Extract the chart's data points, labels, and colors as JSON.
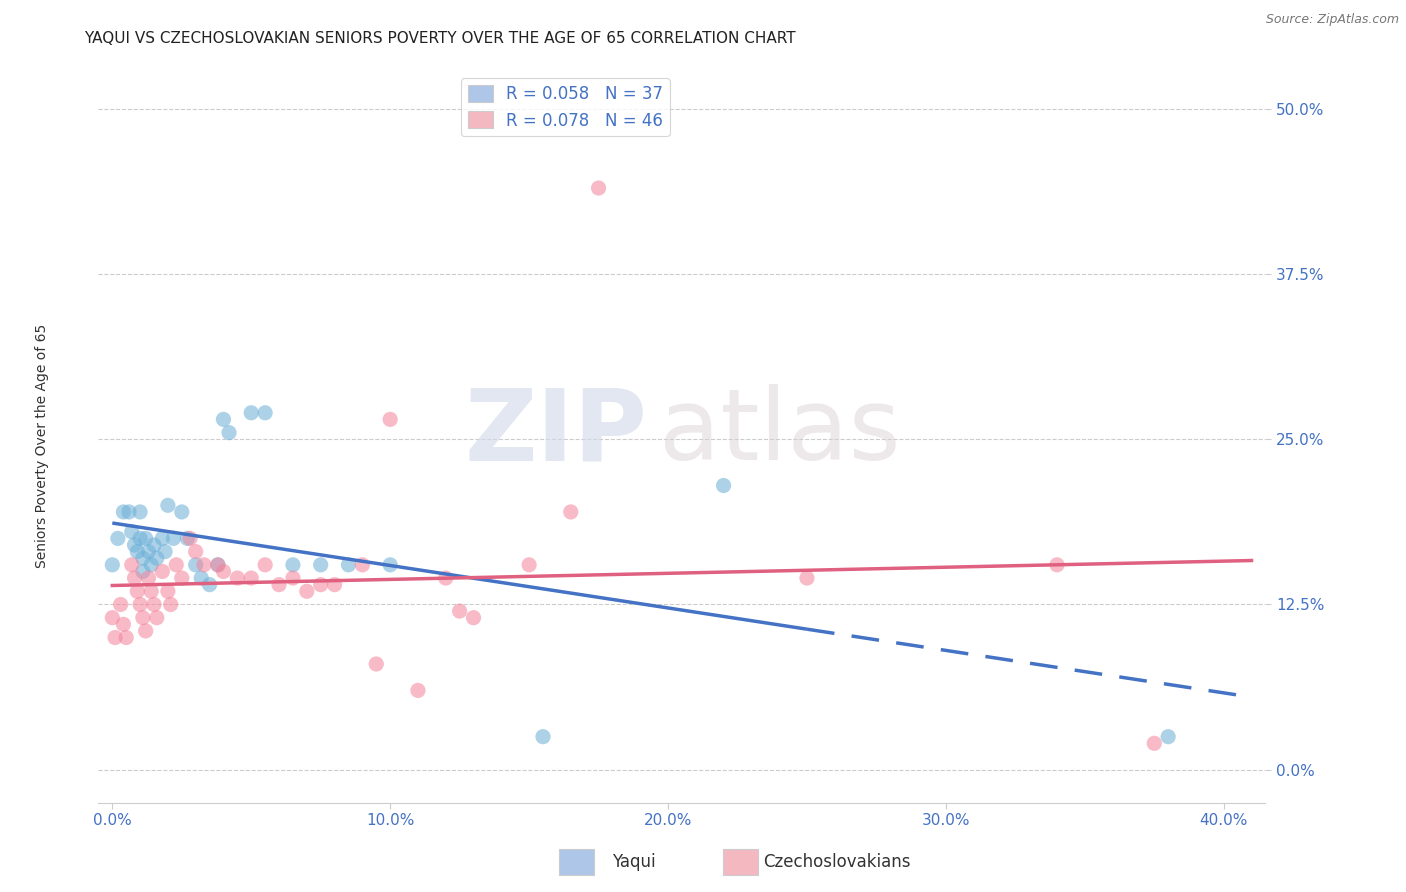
{
  "title": "YAQUI VS CZECHOSLOVAKIAN SENIORS POVERTY OVER THE AGE OF 65 CORRELATION CHART",
  "source": "Source: ZipAtlas.com",
  "xlabel_ticks": [
    "0.0%",
    "10.0%",
    "20.0%",
    "30.0%",
    "40.0%"
  ],
  "xlabel_tick_vals": [
    0.0,
    0.1,
    0.2,
    0.3,
    0.4
  ],
  "ylabel": "Seniors Poverty Over the Age of 65",
  "ylabel_ticks": [
    "0.0%",
    "12.5%",
    "25.0%",
    "37.5%",
    "50.0%"
  ],
  "ylabel_tick_vals": [
    0.0,
    0.125,
    0.25,
    0.375,
    0.5
  ],
  "xlim": [
    -0.005,
    0.415
  ],
  "ylim": [
    -0.025,
    0.535
  ],
  "legend_entries": [
    {
      "label": "R = 0.058   N = 37",
      "color": "#aec6e8"
    },
    {
      "label": "R = 0.078   N = 46",
      "color": "#f4b8c1"
    }
  ],
  "legend_label1": "Yaqui",
  "legend_label2": "Czechoslovakians",
  "yaqui_color": "#6aaed6",
  "czechoslovakian_color": "#f4829a",
  "yaqui_scatter": [
    [
      0.0,
      0.155
    ],
    [
      0.002,
      0.175
    ],
    [
      0.004,
      0.195
    ],
    [
      0.006,
      0.195
    ],
    [
      0.007,
      0.18
    ],
    [
      0.008,
      0.17
    ],
    [
      0.009,
      0.165
    ],
    [
      0.01,
      0.195
    ],
    [
      0.01,
      0.175
    ],
    [
      0.011,
      0.16
    ],
    [
      0.011,
      0.15
    ],
    [
      0.012,
      0.175
    ],
    [
      0.013,
      0.165
    ],
    [
      0.014,
      0.155
    ],
    [
      0.015,
      0.17
    ],
    [
      0.016,
      0.16
    ],
    [
      0.018,
      0.175
    ],
    [
      0.019,
      0.165
    ],
    [
      0.02,
      0.2
    ],
    [
      0.022,
      0.175
    ],
    [
      0.025,
      0.195
    ],
    [
      0.027,
      0.175
    ],
    [
      0.03,
      0.155
    ],
    [
      0.032,
      0.145
    ],
    [
      0.035,
      0.14
    ],
    [
      0.038,
      0.155
    ],
    [
      0.04,
      0.265
    ],
    [
      0.042,
      0.255
    ],
    [
      0.05,
      0.27
    ],
    [
      0.055,
      0.27
    ],
    [
      0.065,
      0.155
    ],
    [
      0.075,
      0.155
    ],
    [
      0.085,
      0.155
    ],
    [
      0.1,
      0.155
    ],
    [
      0.155,
      0.025
    ],
    [
      0.22,
      0.215
    ],
    [
      0.38,
      0.025
    ]
  ],
  "czechoslovakian_scatter": [
    [
      0.0,
      0.115
    ],
    [
      0.001,
      0.1
    ],
    [
      0.003,
      0.125
    ],
    [
      0.004,
      0.11
    ],
    [
      0.005,
      0.1
    ],
    [
      0.007,
      0.155
    ],
    [
      0.008,
      0.145
    ],
    [
      0.009,
      0.135
    ],
    [
      0.01,
      0.125
    ],
    [
      0.011,
      0.115
    ],
    [
      0.012,
      0.105
    ],
    [
      0.013,
      0.145
    ],
    [
      0.014,
      0.135
    ],
    [
      0.015,
      0.125
    ],
    [
      0.016,
      0.115
    ],
    [
      0.018,
      0.15
    ],
    [
      0.02,
      0.135
    ],
    [
      0.021,
      0.125
    ],
    [
      0.023,
      0.155
    ],
    [
      0.025,
      0.145
    ],
    [
      0.028,
      0.175
    ],
    [
      0.03,
      0.165
    ],
    [
      0.033,
      0.155
    ],
    [
      0.038,
      0.155
    ],
    [
      0.04,
      0.15
    ],
    [
      0.045,
      0.145
    ],
    [
      0.05,
      0.145
    ],
    [
      0.055,
      0.155
    ],
    [
      0.06,
      0.14
    ],
    [
      0.065,
      0.145
    ],
    [
      0.07,
      0.135
    ],
    [
      0.075,
      0.14
    ],
    [
      0.08,
      0.14
    ],
    [
      0.09,
      0.155
    ],
    [
      0.095,
      0.08
    ],
    [
      0.1,
      0.265
    ],
    [
      0.11,
      0.06
    ],
    [
      0.12,
      0.145
    ],
    [
      0.125,
      0.12
    ],
    [
      0.13,
      0.115
    ],
    [
      0.15,
      0.155
    ],
    [
      0.165,
      0.195
    ],
    [
      0.175,
      0.44
    ],
    [
      0.25,
      0.145
    ],
    [
      0.34,
      0.155
    ],
    [
      0.375,
      0.02
    ]
  ],
  "yaqui_line_color": "#4472c4",
  "czechoslovakian_line_color": "#e06080",
  "grid_color": "#cccccc",
  "background_color": "#ffffff",
  "watermark_zip": "ZIP",
  "watermark_atlas": "atlas",
  "title_fontsize": 11,
  "axis_label_fontsize": 10,
  "tick_fontsize": 11,
  "tick_color": "#4472c4"
}
